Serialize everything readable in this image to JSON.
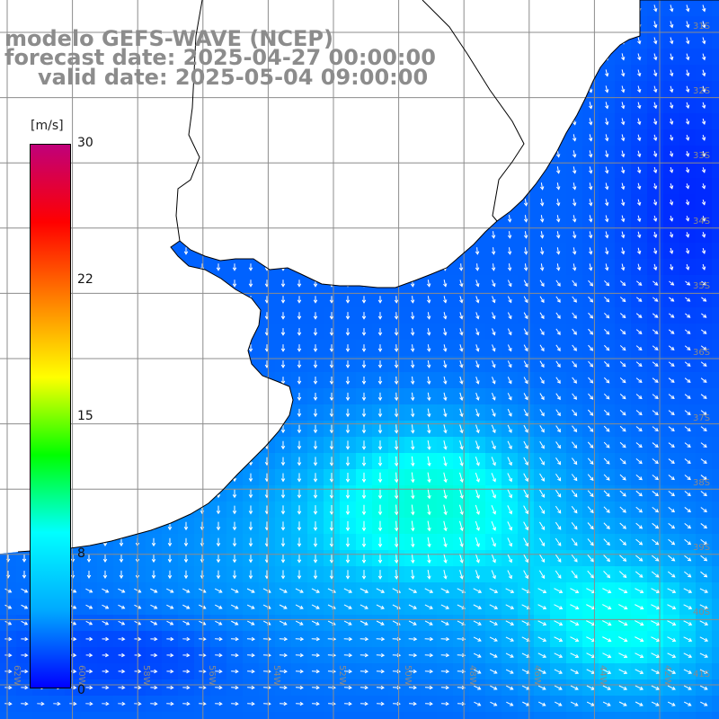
{
  "title": {
    "line1": "modelo GEFS-WAVE (NCEP)",
    "line2": "forecast date: 2025-04-27 00:00:00",
    "line3": "valid date: 2025-05-04 09:00:00"
  },
  "colorbar": {
    "unit": "[m/s]",
    "ticks": [
      "30",
      "22",
      "15",
      "8",
      "0"
    ],
    "tick_values": [
      30,
      22,
      15,
      8,
      0
    ],
    "range": [
      0,
      30
    ],
    "colors": [
      "#0000ff",
      "#00aaff",
      "#00ffff",
      "#00ff00",
      "#ffff00",
      "#ff8000",
      "#ff0000",
      "#c0007a"
    ]
  },
  "lat_labels": [
    "31S",
    "32S",
    "33S",
    "34S",
    "35S",
    "36S",
    "37S",
    "38S",
    "39S",
    "40S",
    "41S"
  ],
  "lon_labels": [
    "62W",
    "60W",
    "58W",
    "56W",
    "54W",
    "52W",
    "50W",
    "48W",
    "46W",
    "44W",
    "42W"
  ],
  "map": {
    "land_color": "#ffffff",
    "grid_color": "#8c8c8c",
    "coast_color": "#000000",
    "arrow_color": "#ffffff"
  }
}
